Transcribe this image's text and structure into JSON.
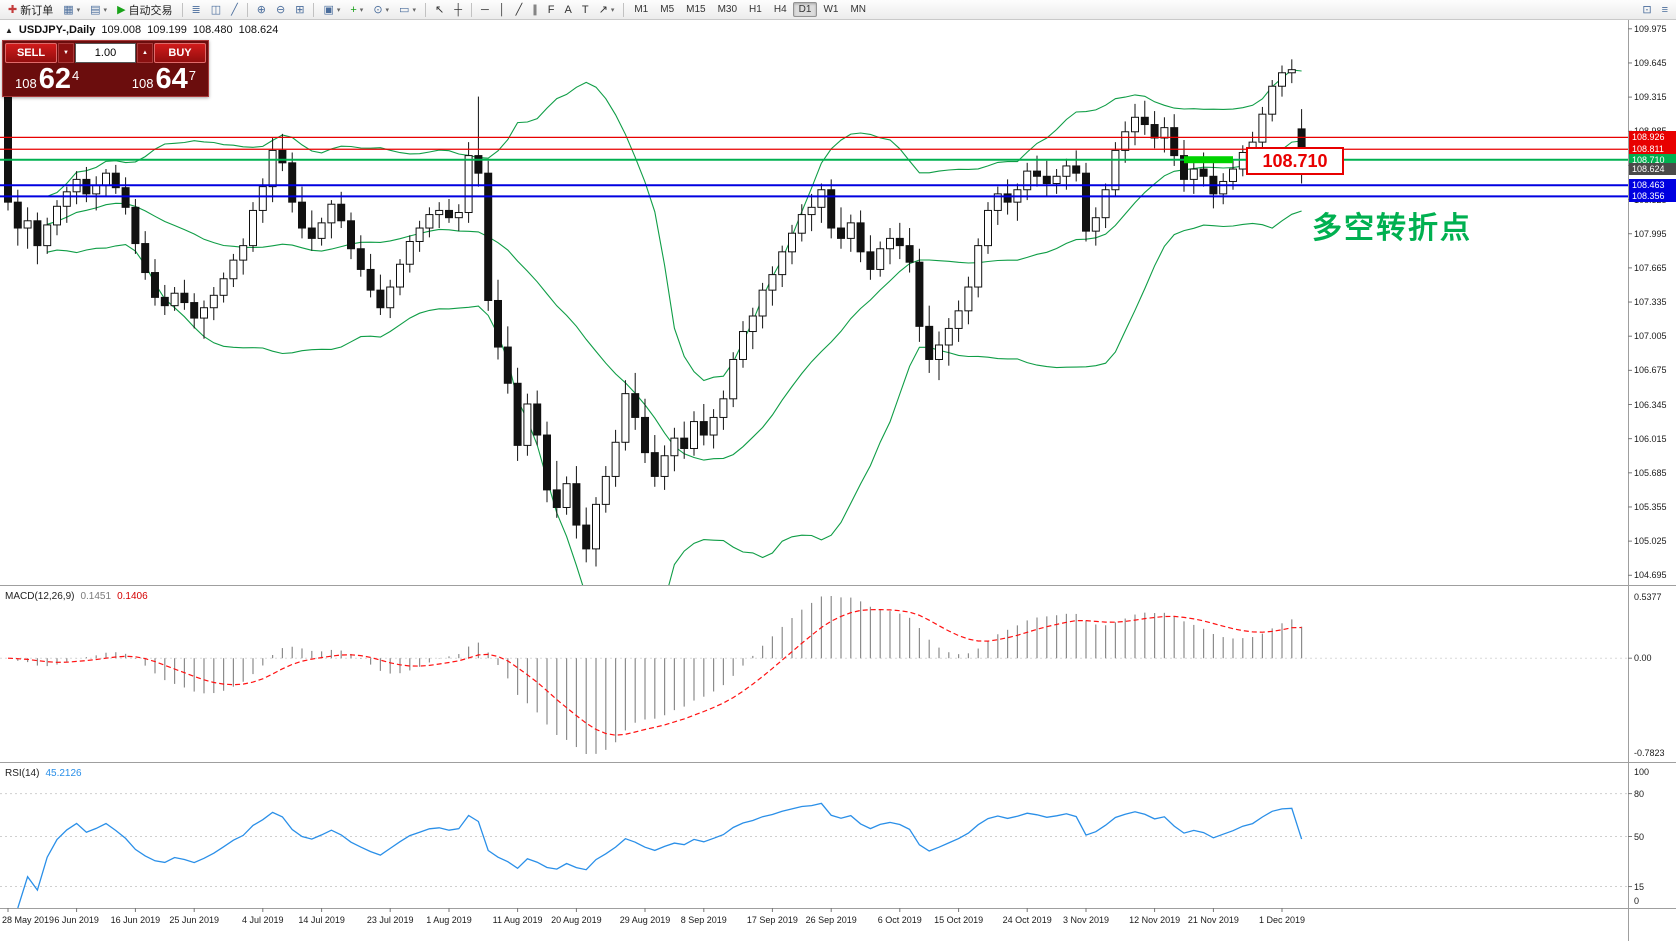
{
  "window_title": {
    "symbol": "USDJPY-,Daily",
    "open": "109.008",
    "high": "109.199",
    "low": "108.480",
    "close": "108.624"
  },
  "icons": {
    "panel_toggle": "▲",
    "volume_down": "▼",
    "volume_up": "▲"
  },
  "toolbar": {
    "groups": [
      {
        "items": [
          {
            "name": "new-order-button",
            "glyph": "✚",
            "color": "#c43c3c",
            "label": "新订单"
          },
          {
            "name": "chart-windows-button",
            "glyph": "▦",
            "color": "#4a6d9c",
            "arrow": true
          },
          {
            "name": "profiles-button",
            "glyph": "▤",
            "color": "#4a6d9c",
            "arrow": true
          },
          {
            "name": "auto-trading-button",
            "glyph": "▶",
            "color": "#19a319",
            "label": "自动交易"
          }
        ]
      },
      {
        "items": [
          {
            "name": "bar-chart-type-button",
            "glyph": "≣",
            "color": "#4a6d9c"
          },
          {
            "name": "candlestick-chart-type-button",
            "glyph": "◫",
            "color": "#4a6d9c"
          },
          {
            "name": "line-chart-type-button",
            "glyph": "╱",
            "color": "#4a6d9c"
          }
        ]
      },
      {
        "items": [
          {
            "name": "zoom-in-button",
            "glyph": "⊕",
            "color": "#4a6d9c"
          },
          {
            "name": "zoom-out-button",
            "glyph": "⊖",
            "color": "#4a6d9c"
          },
          {
            "name": "tile-windows-button",
            "glyph": "⊞",
            "color": "#4a6d9c"
          }
        ]
      },
      {
        "items": [
          {
            "name": "arrange-button",
            "glyph": "▣",
            "color": "#4a6d9c",
            "arrow": true
          },
          {
            "name": "indicators-button",
            "glyph": "+",
            "color": "#18a018",
            "arrow": true
          },
          {
            "name": "periods-button",
            "glyph": "⊙",
            "color": "#4a6d9c",
            "arrow": true
          },
          {
            "name": "templates-button",
            "glyph": "▭",
            "color": "#4a6d9c",
            "arrow": true
          }
        ]
      },
      {
        "items": [
          {
            "name": "cursor-button",
            "glyph": "↖",
            "color": "#333333"
          },
          {
            "name": "crosshair-button",
            "glyph": "┼",
            "color": "#333333"
          }
        ]
      },
      {
        "items": [
          {
            "name": "horizontal-line-button",
            "glyph": "─",
            "color": "#333333"
          },
          {
            "name": "vertical-line-button",
            "glyph": "│",
            "color": "#333333"
          },
          {
            "name": "trendline-button",
            "glyph": "╱",
            "color": "#333333"
          },
          {
            "name": "channel-button",
            "glyph": "∥",
            "color": "#333333"
          },
          {
            "name": "fibonacci-button",
            "glyph": "F",
            "color": "#333333"
          },
          {
            "name": "text-button",
            "glyph": "A",
            "color": "#333333"
          },
          {
            "name": "label-button",
            "glyph": "T",
            "color": "#333333"
          },
          {
            "name": "arrows-button",
            "glyph": "↗",
            "color": "#333333",
            "arrow": true
          }
        ]
      }
    ],
    "timeframes": {
      "items": [
        "M1",
        "M5",
        "M15",
        "M30",
        "H1",
        "H4",
        "D1",
        "W1",
        "MN"
      ],
      "active": "D1"
    },
    "right_items": [
      {
        "name": "new-chart-button",
        "glyph": "⊡",
        "color": "#4a6d9c"
      },
      {
        "name": "menu-button",
        "glyph": "≡",
        "color": "#4a6d9c"
      }
    ]
  },
  "trade_panel": {
    "sell_label": "SELL",
    "buy_label": "BUY",
    "volume": "1.00",
    "sell_small": "108",
    "sell_big": "62",
    "sell_sup": "4",
    "buy_small": "108",
    "buy_big": "64",
    "buy_sup": "7"
  },
  "chart_data": {
    "type": "candlestick",
    "symbol": "USDJPY",
    "period": "Daily",
    "ohlc_current": {
      "open": 109.008,
      "high": 109.199,
      "low": 108.48,
      "close": 108.624
    },
    "candles": [
      [
        109.32,
        109.4,
        108.22,
        108.3
      ],
      [
        108.3,
        108.42,
        107.88,
        108.05
      ],
      [
        108.05,
        108.25,
        107.85,
        108.12
      ],
      [
        108.12,
        108.2,
        107.7,
        107.88
      ],
      [
        107.88,
        108.15,
        107.8,
        108.08
      ],
      [
        108.08,
        108.32,
        107.98,
        108.26
      ],
      [
        108.26,
        108.45,
        108.1,
        108.4
      ],
      [
        108.4,
        108.6,
        108.28,
        108.52
      ],
      [
        108.52,
        108.64,
        108.3,
        108.38
      ],
      [
        108.38,
        108.55,
        108.22,
        108.46
      ],
      [
        108.46,
        108.62,
        108.35,
        108.58
      ],
      [
        108.58,
        108.66,
        108.38,
        108.44
      ],
      [
        108.44,
        108.54,
        108.18,
        108.25
      ],
      [
        108.25,
        108.33,
        107.8,
        107.9
      ],
      [
        107.9,
        108.02,
        107.55,
        107.62
      ],
      [
        107.62,
        107.75,
        107.3,
        107.38
      ],
      [
        107.38,
        107.5,
        107.21,
        107.3
      ],
      [
        107.3,
        107.48,
        107.25,
        107.42
      ],
      [
        107.42,
        107.55,
        107.26,
        107.33
      ],
      [
        107.33,
        107.42,
        107.08,
        107.18
      ],
      [
        107.18,
        107.35,
        106.98,
        107.28
      ],
      [
        107.28,
        107.48,
        107.16,
        107.4
      ],
      [
        107.4,
        107.62,
        107.33,
        107.56
      ],
      [
        107.56,
        107.8,
        107.48,
        107.74
      ],
      [
        107.74,
        107.95,
        107.6,
        107.88
      ],
      [
        107.88,
        108.3,
        107.82,
        108.22
      ],
      [
        108.22,
        108.53,
        108.1,
        108.45
      ],
      [
        108.45,
        108.92,
        108.3,
        108.8
      ],
      [
        108.8,
        108.96,
        108.6,
        108.68
      ],
      [
        108.68,
        108.78,
        108.2,
        108.3
      ],
      [
        108.3,
        108.45,
        107.95,
        108.05
      ],
      [
        108.05,
        108.22,
        107.83,
        107.95
      ],
      [
        107.95,
        108.15,
        107.88,
        108.1
      ],
      [
        108.1,
        108.32,
        107.95,
        108.28
      ],
      [
        108.28,
        108.4,
        108.05,
        108.12
      ],
      [
        108.12,
        108.2,
        107.75,
        107.85
      ],
      [
        107.85,
        107.98,
        107.58,
        107.65
      ],
      [
        107.65,
        107.8,
        107.38,
        107.45
      ],
      [
        107.45,
        107.6,
        107.21,
        107.28
      ],
      [
        107.28,
        107.55,
        107.18,
        107.48
      ],
      [
        107.48,
        107.75,
        107.4,
        107.7
      ],
      [
        107.7,
        107.98,
        107.62,
        107.92
      ],
      [
        107.92,
        108.12,
        107.82,
        108.05
      ],
      [
        108.05,
        108.25,
        107.96,
        108.18
      ],
      [
        108.18,
        108.3,
        108.05,
        108.22
      ],
      [
        108.22,
        108.33,
        108.1,
        108.15
      ],
      [
        108.15,
        108.28,
        108.02,
        108.2
      ],
      [
        108.2,
        108.88,
        108.1,
        108.75
      ],
      [
        108.75,
        109.32,
        108.45,
        108.58
      ],
      [
        108.58,
        108.7,
        107.25,
        107.35
      ],
      [
        107.35,
        107.55,
        106.78,
        106.9
      ],
      [
        106.9,
        107.1,
        106.45,
        106.55
      ],
      [
        106.55,
        106.7,
        105.8,
        105.95
      ],
      [
        105.95,
        106.45,
        105.85,
        106.35
      ],
      [
        106.35,
        106.48,
        105.95,
        106.05
      ],
      [
        106.05,
        106.18,
        105.4,
        105.52
      ],
      [
        105.52,
        105.8,
        105.25,
        105.35
      ],
      [
        105.35,
        105.65,
        105.28,
        105.58
      ],
      [
        105.58,
        105.75,
        105.05,
        105.18
      ],
      [
        105.18,
        105.35,
        104.82,
        104.95
      ],
      [
        104.95,
        105.45,
        104.78,
        105.38
      ],
      [
        105.38,
        105.75,
        105.3,
        105.65
      ],
      [
        105.65,
        106.1,
        105.55,
        105.98
      ],
      [
        105.98,
        106.58,
        105.9,
        106.45
      ],
      [
        106.45,
        106.65,
        106.1,
        106.22
      ],
      [
        106.22,
        106.4,
        105.78,
        105.88
      ],
      [
        105.88,
        106.05,
        105.55,
        105.65
      ],
      [
        105.65,
        105.95,
        105.52,
        105.85
      ],
      [
        105.85,
        106.12,
        105.7,
        106.02
      ],
      [
        106.02,
        106.18,
        105.82,
        105.92
      ],
      [
        105.92,
        106.28,
        105.85,
        106.18
      ],
      [
        106.18,
        106.35,
        105.95,
        106.05
      ],
      [
        106.05,
        106.3,
        105.92,
        106.22
      ],
      [
        106.22,
        106.48,
        106.1,
        106.4
      ],
      [
        106.4,
        106.85,
        106.32,
        106.78
      ],
      [
        106.78,
        107.15,
        106.7,
        107.05
      ],
      [
        107.05,
        107.28,
        106.88,
        107.2
      ],
      [
        107.2,
        107.52,
        107.08,
        107.45
      ],
      [
        107.45,
        107.68,
        107.3,
        107.6
      ],
      [
        107.6,
        107.88,
        107.48,
        107.82
      ],
      [
        107.82,
        108.08,
        107.7,
        108.0
      ],
      [
        108.0,
        108.28,
        107.92,
        108.18
      ],
      [
        108.18,
        108.38,
        108.02,
        108.25
      ],
      [
        108.25,
        108.48,
        108.1,
        108.42
      ],
      [
        108.42,
        108.52,
        107.95,
        108.05
      ],
      [
        108.05,
        108.25,
        107.85,
        107.95
      ],
      [
        107.95,
        108.18,
        107.82,
        108.1
      ],
      [
        108.1,
        108.22,
        107.72,
        107.82
      ],
      [
        107.82,
        107.98,
        107.55,
        107.65
      ],
      [
        107.65,
        107.92,
        107.58,
        107.85
      ],
      [
        107.85,
        108.05,
        107.7,
        107.95
      ],
      [
        107.95,
        108.1,
        107.75,
        107.88
      ],
      [
        107.88,
        108.05,
        107.62,
        107.72
      ],
      [
        107.72,
        107.85,
        106.95,
        107.1
      ],
      [
        107.1,
        107.3,
        106.65,
        106.78
      ],
      [
        106.78,
        107.05,
        106.58,
        106.92
      ],
      [
        106.92,
        107.18,
        106.72,
        107.08
      ],
      [
        107.08,
        107.35,
        106.95,
        107.25
      ],
      [
        107.25,
        107.58,
        107.12,
        107.48
      ],
      [
        107.48,
        107.95,
        107.38,
        107.88
      ],
      [
        107.88,
        108.3,
        107.8,
        108.22
      ],
      [
        108.22,
        108.45,
        108.08,
        108.38
      ],
      [
        108.38,
        108.52,
        108.18,
        108.3
      ],
      [
        108.3,
        108.48,
        108.12,
        108.42
      ],
      [
        108.42,
        108.68,
        108.32,
        108.6
      ],
      [
        108.6,
        108.75,
        108.45,
        108.55
      ],
      [
        108.55,
        108.7,
        108.35,
        108.48
      ],
      [
        108.48,
        108.62,
        108.38,
        108.55
      ],
      [
        108.55,
        108.72,
        108.42,
        108.65
      ],
      [
        108.65,
        108.8,
        108.5,
        108.58
      ],
      [
        108.58,
        108.68,
        107.92,
        108.02
      ],
      [
        108.02,
        108.25,
        107.88,
        108.15
      ],
      [
        108.15,
        108.48,
        108.05,
        108.42
      ],
      [
        108.42,
        108.88,
        108.35,
        108.8
      ],
      [
        108.8,
        109.08,
        108.68,
        108.98
      ],
      [
        108.98,
        109.25,
        108.85,
        109.12
      ],
      [
        109.12,
        109.28,
        108.95,
        109.05
      ],
      [
        109.05,
        109.18,
        108.82,
        108.92
      ],
      [
        108.92,
        109.12,
        108.78,
        109.02
      ],
      [
        109.02,
        109.15,
        108.65,
        108.75
      ],
      [
        108.75,
        108.9,
        108.4,
        108.52
      ],
      [
        108.52,
        108.72,
        108.38,
        108.62
      ],
      [
        108.62,
        108.78,
        108.45,
        108.55
      ],
      [
        108.55,
        108.68,
        108.24,
        108.38
      ],
      [
        108.38,
        108.58,
        108.28,
        108.5
      ],
      [
        108.5,
        108.7,
        108.42,
        108.62
      ],
      [
        108.62,
        108.85,
        108.55,
        108.78
      ],
      [
        108.78,
        108.98,
        108.68,
        108.88
      ],
      [
        108.88,
        109.22,
        108.8,
        109.15
      ],
      [
        109.15,
        109.48,
        109.08,
        109.42
      ],
      [
        109.42,
        109.62,
        109.32,
        109.55
      ],
      [
        109.55,
        109.68,
        109.45,
        109.58
      ],
      [
        109.008,
        109.199,
        108.48,
        108.624
      ]
    ],
    "y_axis_labels": [
      "109.975",
      "109.645",
      "109.315",
      "108.985",
      "108.655",
      "108.325",
      "107.995",
      "107.665",
      "107.335",
      "107.005",
      "106.675",
      "106.345",
      "106.015",
      "105.685",
      "105.355",
      "105.025",
      "104.695"
    ],
    "x_axis": {
      "labels": [
        "28 May 2019",
        "6 Jun 2019",
        "16 Jun 2019",
        "25 Jun 2019",
        "4 Jul 2019",
        "14 Jul 2019",
        "23 Jul 2019",
        "1 Aug 2019",
        "11 Aug 2019",
        "20 Aug 2019",
        "29 Aug 2019",
        "8 Sep 2019",
        "17 Sep 2019",
        "26 Sep 2019",
        "6 Oct 2019",
        "15 Oct 2019",
        "24 Oct 2019",
        "3 Nov 2019",
        "12 Nov 2019",
        "21 Nov 2019",
        "1 Dec 2019"
      ],
      "indices": [
        0,
        7,
        13,
        19,
        26,
        32,
        39,
        45,
        52,
        58,
        65,
        71,
        78,
        84,
        91,
        97,
        104,
        110,
        117,
        123,
        130
      ]
    },
    "horizontal_lines": [
      {
        "label": "108.926",
        "price": 108.926,
        "color": "#e80000",
        "width": 1.3
      },
      {
        "label": "108.811",
        "price": 108.811,
        "color": "#e80000",
        "width": 1.3
      },
      {
        "label": "108.710",
        "price": 108.71,
        "color": "#00b050",
        "width": 2
      },
      {
        "label": "108.463",
        "price": 108.463,
        "color": "#0000e0",
        "width": 2
      },
      {
        "label": "108.356",
        "price": 108.356,
        "color": "#0000e0",
        "width": 2
      }
    ],
    "current_price_tag": {
      "label": "108.624",
      "price": 108.624,
      "color": "#4a4a4a"
    },
    "bollinger": {
      "period": 20,
      "deviation": 2,
      "color": "#0f9d46"
    },
    "macd": {
      "name": "MACD(12,26,9)",
      "value_main": "0.1451",
      "value_signal": "0.1406",
      "scale": [
        "0.5377",
        "0.00",
        "-0.7823"
      ],
      "histogram_color": "#8c8c8c",
      "signal_color": "#ff1111"
    },
    "rsi": {
      "name": "RSI(14)",
      "value": "45.2126",
      "scale": [
        "100",
        "80",
        "50",
        "15",
        "0"
      ],
      "levels": [
        80,
        50,
        15
      ],
      "color": "#2a8fe8"
    },
    "annotations": {
      "price_box": {
        "text": "108.710",
        "border_color": "#e80000",
        "text_color": "#e80000"
      },
      "note_text": {
        "text": "多空转折点",
        "color": "#00b050"
      },
      "highlight": {
        "price": 108.71,
        "start_index": 120,
        "end_index": 125,
        "color": "#00d300"
      }
    }
  }
}
